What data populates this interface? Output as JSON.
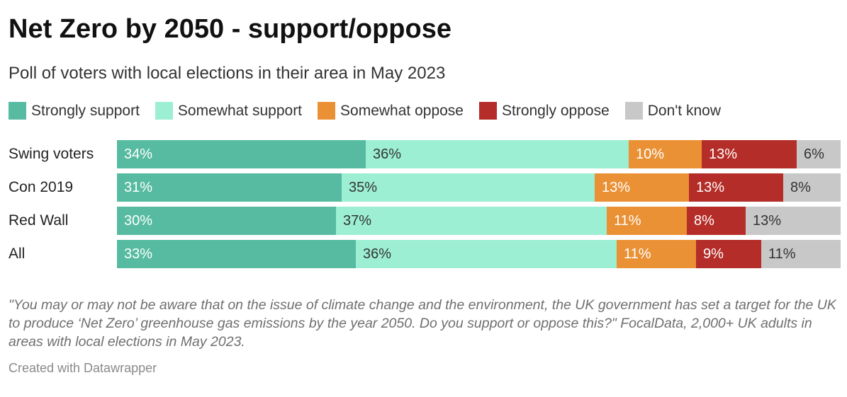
{
  "header": {
    "title": "Net Zero by 2050 - support/oppose",
    "subtitle": "Poll of voters with local elections in their area in May 2023"
  },
  "chart_data": {
    "type": "bar",
    "orientation": "horizontal",
    "stacked": true,
    "title": "Net Zero by 2050 - support/oppose",
    "subtitle": "Poll of voters with local elections in their area in May 2023",
    "categories": [
      "Swing voters",
      "Con 2019",
      "Red Wall",
      "All"
    ],
    "series": [
      {
        "name": "Strongly support",
        "color": "#56bba1",
        "text_color": "#ffffff",
        "values": [
          34,
          31,
          30,
          33
        ]
      },
      {
        "name": "Somewhat support",
        "color": "#9cefd3",
        "text_color": "#333333",
        "values": [
          36,
          35,
          37,
          36
        ]
      },
      {
        "name": "Somewhat oppose",
        "color": "#ea9135",
        "text_color": "#ffffff",
        "values": [
          10,
          13,
          11,
          11
        ]
      },
      {
        "name": "Strongly oppose",
        "color": "#b42d28",
        "text_color": "#ffffff",
        "values": [
          13,
          13,
          8,
          9
        ]
      },
      {
        "name": "Don't know",
        "color": "#c8c8c8",
        "text_color": "#333333",
        "values": [
          6,
          8,
          13,
          11
        ]
      }
    ],
    "value_suffix": "%",
    "legend_position": "top",
    "grid": false
  },
  "footer": {
    "note": "\"You may or may not be aware that on the issue of climate change and the environment, the UK government has set a target for the UK to produce ‘Net Zero’ greenhouse gas emissions by the year 2050. Do you support or oppose this?\" FocalData, 2,000+ UK adults in areas with local elections in May 2023.",
    "credit": "Created with Datawrapper"
  }
}
